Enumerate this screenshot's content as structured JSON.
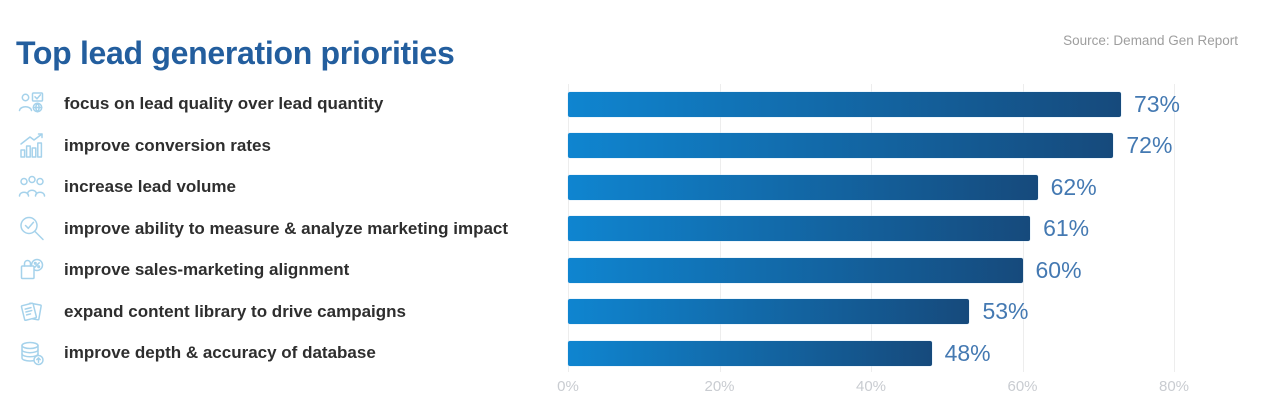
{
  "header": {
    "title": "Top lead generation priorities",
    "source": "Source: Demand Gen Report"
  },
  "colors": {
    "title_color": "#235e9e",
    "source_color": "#9e9e9e",
    "label_color": "#2e2e2e",
    "value_color": "#4479b2",
    "bar_start": "#0f85d0",
    "bar_end": "#164a7c",
    "icon_color": "#a5d2eb",
    "gridline_color": "#ededed",
    "axis_label_color": "#c9ccd1"
  },
  "chart_data": {
    "type": "bar",
    "orientation": "horizontal",
    "title": "Top lead generation priorities",
    "source": "Source: Demand Gen Report",
    "categories": [
      "focus on lead quality over lead quantity",
      "improve conversion rates",
      "increase lead volume",
      "improve ability to measure & analyze marketing impact",
      "improve sales-marketing alignment",
      "expand content library to drive campaigns",
      "improve depth & accuracy of database"
    ],
    "values": [
      73,
      72,
      62,
      61,
      60,
      53,
      48
    ],
    "value_labels": [
      "73%",
      "72%",
      "62%",
      "61%",
      "60%",
      "53%",
      "48%"
    ],
    "icons": [
      "person-lead-quality-icon",
      "conversion-chart-icon",
      "people-group-icon",
      "magnifier-check-icon",
      "sales-bag-percent-icon",
      "content-library-icon",
      "database-upload-icon"
    ],
    "xlabel": "",
    "ylabel": "",
    "xlim": [
      0,
      80
    ],
    "x_ticks": [
      "0%",
      "20%",
      "40%",
      "60%",
      "80%"
    ],
    "grid": true,
    "legend": false
  }
}
